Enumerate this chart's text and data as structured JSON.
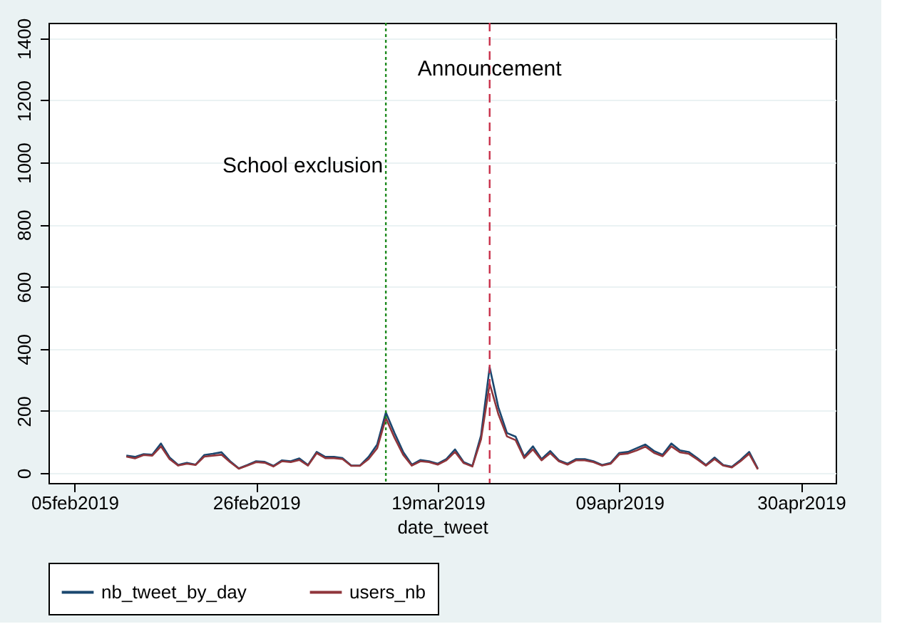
{
  "chart_data": {
    "type": "line",
    "xlabel": "date_tweet",
    "x": [
      "2019-02-11",
      "2019-02-12",
      "2019-02-13",
      "2019-02-14",
      "2019-02-15",
      "2019-02-16",
      "2019-02-17",
      "2019-02-18",
      "2019-02-19",
      "2019-02-20",
      "2019-02-21",
      "2019-02-22",
      "2019-02-23",
      "2019-02-24",
      "2019-02-25",
      "2019-02-26",
      "2019-02-27",
      "2019-02-28",
      "2019-03-01",
      "2019-03-02",
      "2019-03-03",
      "2019-03-04",
      "2019-03-05",
      "2019-03-06",
      "2019-03-07",
      "2019-03-08",
      "2019-03-09",
      "2019-03-10",
      "2019-03-11",
      "2019-03-12",
      "2019-03-13",
      "2019-03-14",
      "2019-03-15",
      "2019-03-16",
      "2019-03-17",
      "2019-03-18",
      "2019-03-19",
      "2019-03-20",
      "2019-03-21",
      "2019-03-22",
      "2019-03-23",
      "2019-03-24",
      "2019-03-25",
      "2019-03-26",
      "2019-03-27",
      "2019-03-28",
      "2019-03-29",
      "2019-03-30",
      "2019-03-31",
      "2019-04-01",
      "2019-04-02",
      "2019-04-03",
      "2019-04-04",
      "2019-04-05",
      "2019-04-06",
      "2019-04-07",
      "2019-04-08",
      "2019-04-09",
      "2019-04-10",
      "2019-04-11",
      "2019-04-12",
      "2019-04-13",
      "2019-04-14",
      "2019-04-15",
      "2019-04-16",
      "2019-04-17",
      "2019-04-18",
      "2019-04-19",
      "2019-04-20",
      "2019-04-21",
      "2019-04-22",
      "2019-04-23",
      "2019-04-24",
      "2019-04-25"
    ],
    "series": [
      {
        "name": "nb_tweet_by_day",
        "color": "#1a476f",
        "values": [
          56,
          52,
          61,
          59,
          95,
          50,
          26,
          33,
          27,
          58,
          62,
          67,
          38,
          15,
          26,
          38,
          36,
          23,
          41,
          38,
          47,
          26,
          68,
          52,
          52,
          48,
          24,
          24,
          52,
          92,
          195,
          129,
          68,
          27,
          42,
          38,
          30,
          45,
          76,
          35,
          23,
          121,
          341,
          212,
          129,
          117,
          53,
          86,
          45,
          71,
          41,
          30,
          45,
          45,
          38,
          26,
          33,
          65,
          68,
          80,
          92,
          71,
          59,
          95,
          73,
          68,
          48,
          26,
          50,
          26,
          20,
          42,
          68,
          14
        ]
      },
      {
        "name": "users_nb",
        "color": "#90353b",
        "values": [
          53,
          47,
          58,
          56,
          86,
          45,
          24,
          30,
          26,
          53,
          56,
          59,
          35,
          14,
          24,
          35,
          33,
          21,
          38,
          35,
          42,
          24,
          64,
          48,
          48,
          45,
          23,
          23,
          45,
          80,
          177,
          114,
          59,
          24,
          38,
          35,
          27,
          41,
          68,
          32,
          21,
          108,
          288,
          190,
          118,
          106,
          48,
          76,
          41,
          64,
          38,
          27,
          41,
          41,
          35,
          24,
          30,
          60,
          63,
          73,
          85,
          65,
          54,
          86,
          67,
          62,
          44,
          24,
          45,
          24,
          18,
          38,
          62,
          12
        ]
      }
    ],
    "xlim": [
      "2019-02-02",
      "2019-05-04"
    ],
    "xticks": [
      {
        "value": "2019-02-05",
        "label": "05feb2019"
      },
      {
        "value": "2019-02-26",
        "label": "26feb2019"
      },
      {
        "value": "2019-03-19",
        "label": "19mar2019"
      },
      {
        "value": "2019-04-09",
        "label": "09apr2019"
      },
      {
        "value": "2019-04-30",
        "label": "30apr2019"
      }
    ],
    "ylim": [
      -32,
      1450
    ],
    "yticks": [
      0,
      200,
      400,
      600,
      800,
      1000,
      1200,
      1400
    ],
    "grid": "y",
    "legend": "bottom",
    "line_style": "solid",
    "marker": "none",
    "ref_lines": [
      {
        "axis": "x",
        "value": "2019-03-13",
        "label": "School exclusion",
        "color": "#1e8a1e",
        "line_style": "dotted"
      },
      {
        "axis": "x",
        "value": "2019-03-25",
        "label": "Announcement",
        "color": "#c8304a",
        "line_style": "dashed"
      }
    ]
  }
}
